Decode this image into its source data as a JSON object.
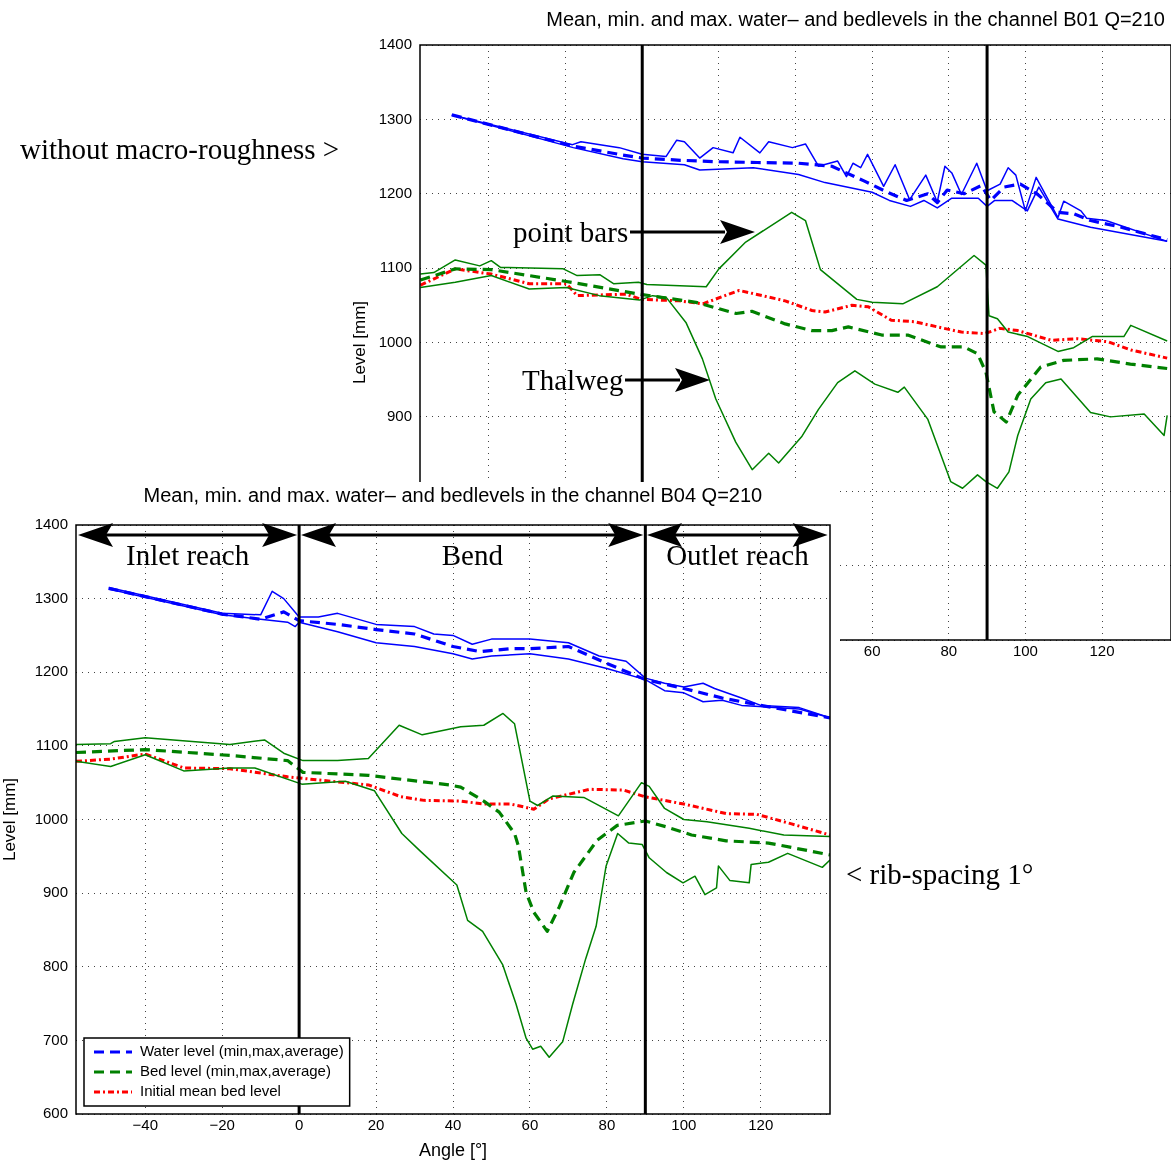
{
  "chart_data": [
    {
      "type": "line",
      "title": "Mean, min. and max. water– and bedlevels in the channel B01 Q=210",
      "ylabel": "Level [mm]",
      "xlim": [
        -58,
        138
      ],
      "ylim": [
        600,
        1400
      ],
      "xticks": [
        {
          "value": -40,
          "label": null
        },
        {
          "value": -20,
          "label": null
        },
        {
          "value": 0,
          "label": null
        },
        {
          "value": 20,
          "label": null
        },
        {
          "value": 40,
          "label": null
        },
        60,
        80,
        100,
        120
      ],
      "yticks": [
        {
          "value": 600,
          "label": null
        },
        {
          "value": 700,
          "label": null
        },
        {
          "value": 800,
          "label": null
        },
        900,
        1000,
        1100,
        1200,
        1300,
        1400
      ],
      "grid": true,
      "legend": false,
      "ref_lines": [
        {
          "axis": "x",
          "value": 0,
          "color": "#000000"
        },
        {
          "axis": "x",
          "value": 90,
          "color": "#000000"
        }
      ],
      "annotations": [
        "without macro-roughness >",
        "point bars",
        "Thalweg"
      ],
      "series": [
        {
          "color": "#0000ff",
          "line_style": "solid",
          "x": [
            -49.7,
            -18.2,
            -16,
            -6,
            0,
            6.2,
            9,
            11,
            15,
            18.5,
            23.7,
            25.5,
            30.7,
            33,
            39.2,
            42.6,
            46,
            51,
            53.3,
            55,
            57,
            58.8,
            63,
            66,
            69.8,
            74,
            77,
            79,
            80.8,
            83.3,
            87.3,
            90,
            93.4,
            95.5,
            97.5,
            100,
            102.8,
            108.5,
            110,
            114.5,
            116,
            121,
            137
          ],
          "values": [
            1306,
            1266,
            1270,
            1262,
            1253,
            1250,
            1272,
            1270,
            1248,
            1262,
            1255,
            1276,
            1255,
            1270,
            1262,
            1267,
            1237,
            1244,
            1223,
            1241,
            1235,
            1253,
            1210,
            1239,
            1192,
            1225,
            1189,
            1237,
            1228,
            1199,
            1241,
            1204,
            1213,
            1235,
            1225,
            1177,
            1222,
            1168,
            1190,
            1177,
            1167,
            1164,
            1136
          ]
        },
        {
          "color": "#0000ff",
          "line_style": "solid",
          "x": [
            -49.7,
            -18,
            -5,
            0,
            11,
            15,
            29,
            40.8,
            47.7,
            60,
            64.5,
            70,
            73.5,
            77,
            80.8,
            87.7,
            90,
            92,
            96.5,
            100.5,
            103.5,
            108.5,
            117,
            137
          ],
          "values": [
            1306,
            1262,
            1247,
            1243,
            1239,
            1232,
            1235,
            1226,
            1215,
            1202,
            1191,
            1183,
            1191,
            1181,
            1194,
            1194,
            1183,
            1191,
            1191,
            1177,
            1209,
            1166,
            1155,
            1136
          ]
        },
        {
          "color": "#0000ff",
          "line_style": "dashed",
          "x": [
            -49.7,
            -18,
            -5,
            0,
            10,
            20,
            30,
            40.8,
            49.5,
            58,
            64,
            69,
            74.5,
            77,
            79.6,
            84,
            88.5,
            91,
            94.4,
            98.7,
            103,
            108.5,
            112.7,
            117,
            125,
            137
          ],
          "values": [
            1306,
            1264,
            1252,
            1248,
            1245,
            1243,
            1242,
            1241,
            1237,
            1217,
            1202,
            1191,
            1200,
            1188,
            1205,
            1200,
            1211,
            1191,
            1209,
            1213,
            1200,
            1175,
            1173,
            1164,
            1155,
            1138
          ]
        },
        {
          "color": "#008000",
          "line_style": "solid",
          "x": [
            -57.9,
            -54.4,
            -48.8,
            -42.4,
            -39.4,
            -37,
            -20.6,
            -17,
            -11,
            -7.5,
            -1,
            1.2,
            16.7,
            20,
            27,
            39,
            42.6,
            46.5,
            56,
            60,
            68,
            77,
            86.6,
            89.7,
            90.5,
            92.7,
            95.5,
            100.6,
            108.5,
            112.6,
            117.4,
            125.7,
            127.5,
            137
          ],
          "values": [
            1092,
            1094,
            1111,
            1103,
            1110,
            1101,
            1099,
            1090,
            1091,
            1079,
            1081,
            1078,
            1075,
            1099,
            1135,
            1175,
            1164,
            1098,
            1058,
            1054,
            1052,
            1075,
            1117,
            1104,
            1036,
            1032,
            1014,
            1008,
            988,
            993,
            1008,
            1008,
            1023,
            1002
          ]
        },
        {
          "color": "#008000",
          "line_style": "solid",
          "x": [
            -57.9,
            -48.8,
            -39.4,
            -29.5,
            -19.8,
            -11.2,
            -0.7,
            2.7,
            6.2,
            11.4,
            15.7,
            19.2,
            24.4,
            28.7,
            33,
            35.6,
            41.7,
            46,
            51,
            55.5,
            60.7,
            66.7,
            68.4,
            74.5,
            80.5,
            83.6,
            87.5,
            89.7,
            92.7,
            95.7,
            98,
            101.4,
            105.3,
            109.3,
            117,
            122.2,
            131,
            136.2,
            137
          ],
          "values": [
            1074,
            1081,
            1090,
            1072,
            1074,
            1063,
            1057,
            1063,
            1061,
            1027,
            978,
            924,
            866,
            829,
            851,
            838,
            874,
            910,
            946,
            962,
            944,
            933,
            940,
            897,
            813,
            804,
            822,
            813,
            804,
            826,
            875,
            924,
            946,
            951,
            906,
            900,
            904,
            875,
            902
          ]
        },
        {
          "color": "#008000",
          "line_style": "dashed",
          "x": [
            -57.9,
            -48.8,
            -39.4,
            -19.8,
            -0.7,
            14,
            24.5,
            28.6,
            37.3,
            44.3,
            49.5,
            53.8,
            62.5,
            69.3,
            78,
            84,
            87.5,
            89.7,
            91.8,
            95,
            98,
            104,
            110,
            118.7,
            127.4,
            137
          ],
          "values": [
            1084,
            1099,
            1098,
            1082,
            1065,
            1054,
            1039,
            1042,
            1025,
            1016,
            1016,
            1021,
            1010,
            1010,
            994,
            994,
            985,
            960,
            907,
            893,
            929,
            967,
            976,
            978,
            971,
            965
          ]
        },
        {
          "color": "#ff0000",
          "line_style": "dotted",
          "x": [
            -57.9,
            -48.8,
            -39.4,
            -29.5,
            -19.8,
            -17,
            -4.2,
            -0.3,
            9.7,
            15.8,
            25.3,
            37.3,
            44.3,
            47.7,
            54.7,
            59,
            65,
            71,
            77,
            83.3,
            89.4,
            93.3,
            98,
            106.7,
            113.7,
            121.5,
            127.5,
            137
          ],
          "values": [
            1077,
            1099,
            1092,
            1079,
            1079,
            1063,
            1065,
            1058,
            1056,
            1052,
            1070,
            1056,
            1043,
            1041,
            1050,
            1048,
            1030,
            1028,
            1021,
            1014,
            1012,
            1019,
            1016,
            1003,
            1005,
            1001,
            990,
            979
          ]
        }
      ]
    },
    {
      "type": "line",
      "title": "Mean, min. and max. water– and bedlevels in the channel B04 Q=210",
      "xlabel": "Angle [°]",
      "ylabel": "Level [mm]",
      "xlim": [
        -58,
        138
      ],
      "ylim": [
        600,
        1400
      ],
      "xticks": [
        -40,
        -20,
        0,
        20,
        40,
        60,
        80,
        100,
        120
      ],
      "yticks": [
        600,
        700,
        800,
        900,
        1000,
        1100,
        1200,
        1300,
        1400
      ],
      "grid": true,
      "legend": "bottom left",
      "ref_lines": [
        {
          "axis": "x",
          "value": 0,
          "color": "#000000"
        },
        {
          "axis": "x",
          "value": 90,
          "color": "#000000"
        }
      ],
      "annotations": [
        "Inlet reach",
        "Bend",
        "Outlet reach",
        "< rib-spacing 1°"
      ],
      "series": [
        {
          "color": "#0000ff",
          "line_style": "solid",
          "x": [
            -49.5,
            -20,
            -10,
            -7,
            -4,
            0,
            5,
            10,
            20,
            30,
            35,
            40,
            45,
            50,
            60,
            70,
            78,
            85,
            90,
            95,
            100,
            105,
            108,
            115,
            120,
            130,
            138
          ],
          "values": [
            1315,
            1280,
            1278,
            1310,
            1300,
            1275,
            1275,
            1280,
            1265,
            1262,
            1252,
            1250,
            1238,
            1245,
            1245,
            1240,
            1222,
            1215,
            1192,
            1185,
            1180,
            1185,
            1178,
            1165,
            1155,
            1152,
            1138
          ]
        },
        {
          "color": "#0000ff",
          "line_style": "solid",
          "x": [
            -49.5,
            -20,
            -10,
            -3,
            -1,
            0,
            10,
            20,
            30,
            40,
            45,
            50,
            60,
            70,
            80,
            90,
            95,
            100,
            105,
            110,
            115,
            130,
            138
          ],
          "values": [
            1313,
            1278,
            1272,
            1268,
            1262,
            1268,
            1255,
            1240,
            1235,
            1225,
            1218,
            1222,
            1225,
            1218,
            1205,
            1190,
            1175,
            1172,
            1160,
            1162,
            1155,
            1150,
            1138
          ]
        },
        {
          "name": "Water level (min,max,average)",
          "color": "#0000ff",
          "line_style": "dashed",
          "x": [
            -49.5,
            -20,
            -10,
            -4,
            0,
            10,
            20,
            30,
            40,
            47,
            55,
            60,
            70,
            80,
            90,
            100,
            110,
            120,
            138
          ],
          "values": [
            1314,
            1279,
            1272,
            1282,
            1270,
            1265,
            1258,
            1252,
            1235,
            1228,
            1232,
            1232,
            1235,
            1212,
            1190,
            1178,
            1165,
            1155,
            1138
          ]
        },
        {
          "color": "#008000",
          "line_style": "solid",
          "x": [
            -58,
            -49,
            -48,
            -40,
            -18,
            -9,
            -4,
            1,
            10,
            18,
            26,
            32,
            42,
            48,
            53,
            56,
            60,
            62,
            66,
            74,
            83,
            89,
            91,
            95,
            100,
            106,
            117,
            126,
            138
          ],
          "values": [
            1102,
            1103,
            1106,
            1111,
            1102,
            1108,
            1090,
            1080,
            1080,
            1083,
            1128,
            1115,
            1126,
            1128,
            1144,
            1130,
            1025,
            1019,
            1032,
            1030,
            1005,
            1050,
            1045,
            1015,
            1000,
            997,
            988,
            979,
            977
          ]
        },
        {
          "color": "#008000",
          "line_style": "solid",
          "x": [
            -58,
            -49,
            -40,
            -30,
            -18,
            -11.5,
            0.7,
            12,
            19.6,
            26.7,
            31.5,
            41,
            43.8,
            47.7,
            52.9,
            56.4,
            59,
            60.7,
            62.8,
            65,
            68.5,
            71.1,
            74.5,
            77.2,
            79.8,
            82.8,
            85.7,
            89.2,
            91,
            95.5,
            99.8,
            102.9,
            105.5,
            108.5,
            109,
            112,
            117,
            117.5,
            122,
            127,
            136,
            138
          ],
          "values": [
            1079,
            1072,
            1088,
            1066,
            1070,
            1070,
            1048,
            1052,
            1039,
            981,
            957,
            911,
            863,
            848,
            803,
            749,
            703,
            688,
            692,
            677,
            698,
            749,
            811,
            855,
            937,
            981,
            968,
            966,
            948,
            928,
            914,
            923,
            898,
            907,
            937,
            917,
            914,
            939,
            942,
            954,
            935,
            945
          ]
        },
        {
          "name": "Bed level (min,max,average)",
          "color": "#008000",
          "line_style": "dashed",
          "x": [
            -58,
            -40,
            -18,
            -3,
            1,
            18,
            39,
            42,
            48,
            52,
            56,
            57,
            59,
            61,
            64.5,
            67.6,
            71.4,
            77.5,
            82.7,
            90,
            95.5,
            102,
            111,
            122,
            138
          ],
          "values": [
            1091,
            1095,
            1087,
            1080,
            1064,
            1060,
            1047,
            1044,
            1025,
            1010,
            981,
            964,
            901,
            874,
            848,
            881,
            928,
            972,
            992,
            998,
            990,
            979,
            971,
            968,
            952
          ]
        },
        {
          "name": "Initial mean bed level",
          "color": "#ff0000",
          "line_style": "dotted",
          "x": [
            -58,
            -49,
            -40,
            -30,
            -18,
            -3,
            2.5,
            18,
            26.4,
            32.5,
            42,
            48,
            55,
            61,
            65,
            75.5,
            84.3,
            89.8,
            100,
            111,
            119,
            128,
            138
          ],
          "values": [
            1079,
            1082,
            1089,
            1070,
            1069,
            1058,
            1055,
            1047,
            1031,
            1026,
            1025,
            1021,
            1021,
            1014,
            1028,
            1041,
            1040,
            1031,
            1021,
            1008,
            1007,
            994,
            979
          ]
        }
      ]
    }
  ]
}
